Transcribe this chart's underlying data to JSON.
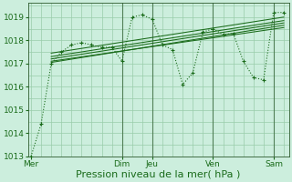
{
  "background_color": "#cceedd",
  "plot_bg_color": "#cceedd",
  "grid_color": "#99ccaa",
  "line_color": "#1a6b1a",
  "dark_line_color": "#2d5a2d",
  "ylim": [
    1013.0,
    1019.6
  ],
  "yticks": [
    1013,
    1014,
    1015,
    1016,
    1017,
    1018,
    1019
  ],
  "xlabel": "Pression niveau de la mer( hPa )",
  "xlabel_fontsize": 8,
  "tick_fontsize": 6.5,
  "day_labels": [
    "Mer",
    "Dim",
    "Jeu",
    "Ven",
    "Sam"
  ],
  "day_positions": [
    0,
    9,
    12,
    18,
    24
  ],
  "main_x": [
    0,
    1,
    2,
    3,
    4,
    5,
    6,
    7,
    8,
    9,
    10,
    11,
    12,
    13,
    14,
    15,
    16,
    17,
    18,
    19,
    20,
    21,
    22,
    23,
    24,
    25
  ],
  "main_y": [
    1013.0,
    1014.4,
    1017.0,
    1017.5,
    1017.8,
    1017.9,
    1017.8,
    1017.7,
    1017.7,
    1017.1,
    1019.0,
    1019.1,
    1018.9,
    1017.8,
    1017.6,
    1016.1,
    1016.6,
    1018.35,
    1018.5,
    1018.25,
    1018.3,
    1017.1,
    1016.4,
    1016.3,
    1019.2,
    1019.2
  ],
  "trend_lines": [
    [
      2,
      25,
      1017.05,
      1018.65
    ],
    [
      2,
      25,
      1017.3,
      1018.85
    ],
    [
      2,
      25,
      1017.45,
      1019.0
    ],
    [
      2,
      25,
      1017.2,
      1018.75
    ],
    [
      2,
      25,
      1017.1,
      1018.55
    ]
  ],
  "vlines_x": [
    9,
    12,
    18,
    24
  ],
  "xlim": [
    -0.3,
    25.5
  ]
}
